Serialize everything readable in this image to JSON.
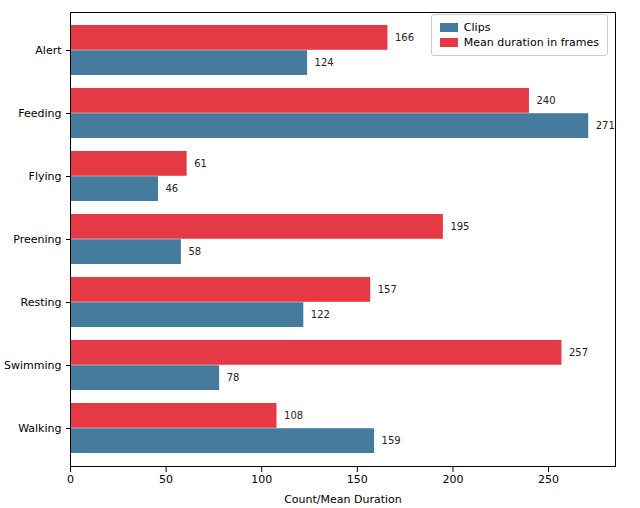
{
  "chart_data": {
    "type": "bar",
    "orientation": "horizontal",
    "data_labels": true,
    "grid": false,
    "legend": "upper right",
    "x_label": "Count/Mean Duration",
    "categories": [
      "Alert",
      "Feeding",
      "Flying",
      "Preening",
      "Resting",
      "Swimming",
      "Walking"
    ],
    "series": [
      {
        "name": "Clips",
        "color": "#457b9d",
        "values": [
          124,
          271,
          46,
          58,
          122,
          78,
          159
        ]
      },
      {
        "name": "Mean duration in frames",
        "color": "#e63946",
        "values": [
          166,
          240,
          61,
          195,
          157,
          257,
          108
        ]
      }
    ],
    "xlim": [
      0,
      285
    ],
    "xticks": [
      0,
      50,
      100,
      150,
      200,
      250
    ]
  }
}
